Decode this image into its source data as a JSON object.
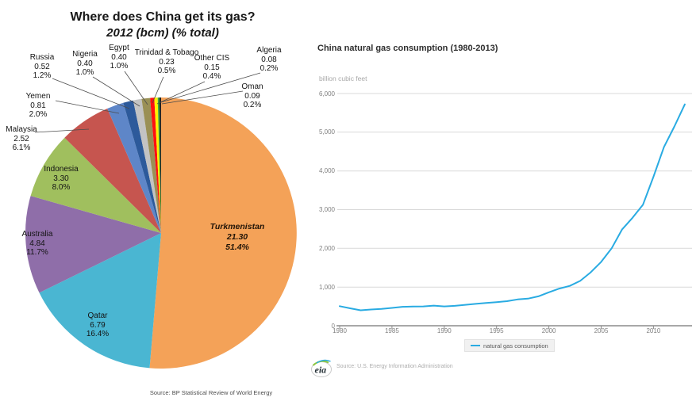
{
  "chart_data": [
    {
      "type": "pie",
      "title": "Where does China get its gas?",
      "subtitle": "2012 (bcm) (% total)",
      "source": "Source: BP Statistical Review of World Energy",
      "units": "bcm",
      "slices": [
        {
          "label": "Turkmenistan",
          "value": "21.30",
          "pct": "51.4%",
          "pct_num": 51.4,
          "color": "#F4A258"
        },
        {
          "label": "Qatar",
          "value": "6.79",
          "pct": "16.4%",
          "pct_num": 16.4,
          "color": "#4AB6D2"
        },
        {
          "label": "Australia",
          "value": "4.84",
          "pct": "11.7%",
          "pct_num": 11.7,
          "color": "#8F6EA9"
        },
        {
          "label": "Indonesia",
          "value": "3.30",
          "pct": "8.0%",
          "pct_num": 8.0,
          "color": "#A0BF5E"
        },
        {
          "label": "Malaysia",
          "value": "2.52",
          "pct": "6.1%",
          "pct_num": 6.1,
          "color": "#C6554F"
        },
        {
          "label": "Yemen",
          "value": "0.81",
          "pct": "2.0%",
          "pct_num": 2.0,
          "color": "#5E86C8"
        },
        {
          "label": "Russia",
          "value": "0.52",
          "pct": "1.2%",
          "pct_num": 1.2,
          "color": "#2D5A9B"
        },
        {
          "label": "Nigeria",
          "value": "0.40",
          "pct": "1.0%",
          "pct_num": 1.0,
          "color": "#C3C3C3"
        },
        {
          "label": "Egypt",
          "value": "0.40",
          "pct": "1.0%",
          "pct_num": 1.0,
          "color": "#9A9055"
        },
        {
          "label": "Trinidad & Tobago",
          "value": "0.23",
          "pct": "0.5%",
          "pct_num": 0.5,
          "color": "#FE1010"
        },
        {
          "label": "Other CIS",
          "value": "0.15",
          "pct": "0.4%",
          "pct_num": 0.4,
          "color": "#FFF200"
        },
        {
          "label": "Algeria",
          "value": "0.08",
          "pct": "0.2%",
          "pct_num": 0.2,
          "color": "#3DA13D"
        },
        {
          "label": "Oman",
          "value": "0.09",
          "pct": "0.2%",
          "pct_num": 0.2,
          "color": "#222222"
        }
      ]
    },
    {
      "type": "line",
      "title": "China natural gas consumption (1980-2013)",
      "ylabel": "billion cubic feet",
      "legend": "natural gas consumption",
      "source": "Source: U.S. Energy Information Administration",
      "logo_text": "eia",
      "line_color": "#29ABE2",
      "grid": true,
      "legend_position": "bottom-center",
      "ylim": [
        0,
        6000
      ],
      "ytick_labels": [
        "6,000",
        "5,000",
        "4,000",
        "3,000",
        "2,000",
        "1,000",
        "0"
      ],
      "ytick_values": [
        6000,
        5000,
        4000,
        3000,
        2000,
        1000,
        0
      ],
      "xtick_labels": [
        "1980",
        "1985",
        "1990",
        "1995",
        "2000",
        "2005",
        "2010"
      ],
      "xtick_values": [
        1980,
        1985,
        1990,
        1995,
        2000,
        2005,
        2010
      ],
      "x": [
        1980,
        1981,
        1982,
        1983,
        1984,
        1985,
        1986,
        1987,
        1988,
        1989,
        1990,
        1991,
        1992,
        1993,
        1994,
        1995,
        1996,
        1997,
        1998,
        1999,
        2000,
        2001,
        2002,
        2003,
        2004,
        2005,
        2006,
        2007,
        2008,
        2009,
        2010,
        2011,
        2012,
        2013
      ],
      "values": [
        505,
        450,
        400,
        420,
        435,
        460,
        490,
        495,
        500,
        520,
        500,
        515,
        540,
        565,
        590,
        610,
        635,
        680,
        700,
        760,
        865,
        960,
        1030,
        1160,
        1380,
        1650,
        2000,
        2490,
        2790,
        3130,
        3850,
        4615,
        5150,
        5720
      ]
    }
  ]
}
